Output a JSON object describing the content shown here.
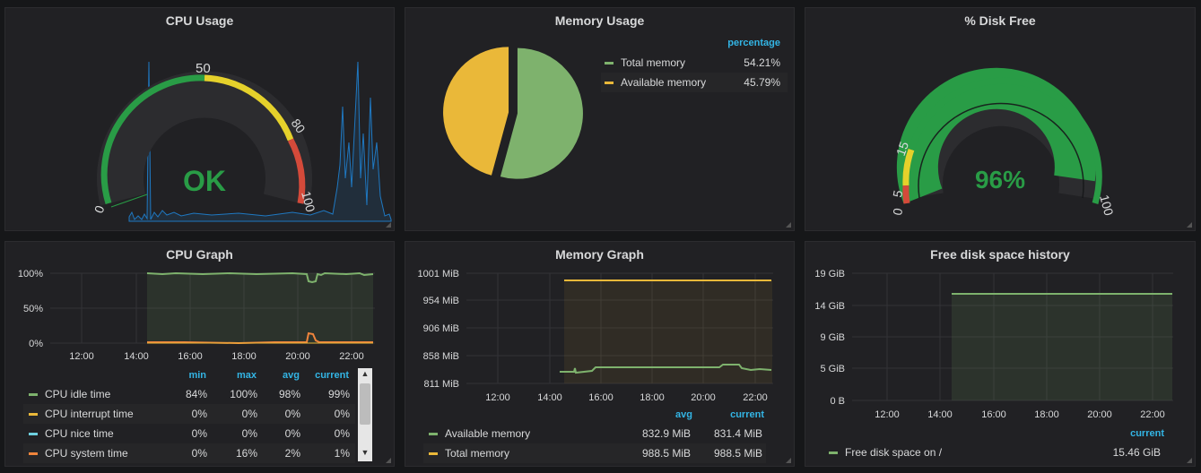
{
  "panels": {
    "cpu_usage": {
      "title": "CPU Usage",
      "status": "OK",
      "ticks": [
        "0",
        "50",
        "80",
        "100"
      ]
    },
    "memory_usage": {
      "title": "Memory Usage",
      "legend_header": "percentage",
      "items": [
        {
          "label": "Total memory",
          "value": "54.21%",
          "color": "#7eb26d"
        },
        {
          "label": "Available memory",
          "value": "45.79%",
          "color": "#eab839"
        }
      ]
    },
    "disk_free": {
      "title": "% Disk Free",
      "value": "96%",
      "ticks": [
        "0",
        "5",
        "15",
        "100"
      ]
    },
    "cpu_graph": {
      "title": "CPU Graph",
      "y_ticks": [
        "100%",
        "50%",
        "0%"
      ],
      "x_ticks": [
        "12:00",
        "14:00",
        "16:00",
        "18:00",
        "20:00",
        "22:00"
      ],
      "legend_headers": [
        "min",
        "max",
        "avg",
        "current"
      ],
      "rows": [
        {
          "name": "CPU idle time",
          "min": "84%",
          "max": "100%",
          "avg": "98%",
          "current": "99%",
          "color": "#7eb26d"
        },
        {
          "name": "CPU interrupt time",
          "min": "0%",
          "max": "0%",
          "avg": "0%",
          "current": "0%",
          "color": "#eab839"
        },
        {
          "name": "CPU nice time",
          "min": "0%",
          "max": "0%",
          "avg": "0%",
          "current": "0%",
          "color": "#6ed0e0"
        },
        {
          "name": "CPU system time",
          "min": "0%",
          "max": "16%",
          "avg": "2%",
          "current": "1%",
          "color": "#ef843c"
        }
      ]
    },
    "memory_graph": {
      "title": "Memory Graph",
      "y_ticks": [
        "1001 MiB",
        "954 MiB",
        "906 MiB",
        "858 MiB",
        "811 MiB"
      ],
      "x_ticks": [
        "12:00",
        "14:00",
        "16:00",
        "18:00",
        "20:00",
        "22:00"
      ],
      "legend_headers": [
        "avg",
        "current"
      ],
      "rows": [
        {
          "name": "Available memory",
          "avg": "832.9 MiB",
          "current": "831.4 MiB",
          "color": "#7eb26d"
        },
        {
          "name": "Total memory",
          "avg": "988.5 MiB",
          "current": "988.5 MiB",
          "color": "#eab839"
        }
      ]
    },
    "disk_history": {
      "title": "Free disk space history",
      "y_ticks": [
        "19 GiB",
        "14 GiB",
        "9 GiB",
        "5 GiB",
        "0 B"
      ],
      "x_ticks": [
        "12:00",
        "14:00",
        "16:00",
        "18:00",
        "20:00",
        "22:00"
      ],
      "legend_headers": [
        "current"
      ],
      "rows": [
        {
          "name": "Free disk space on /",
          "current": "15.46 GiB",
          "color": "#7eb26d"
        }
      ]
    }
  },
  "colors": {
    "green": "#299c46",
    "ok_text": "#299c46",
    "yellow": "#e5d12b",
    "red": "#d44a3a",
    "sparkline": "#1f78c1",
    "accent": "#33b5e5"
  }
}
